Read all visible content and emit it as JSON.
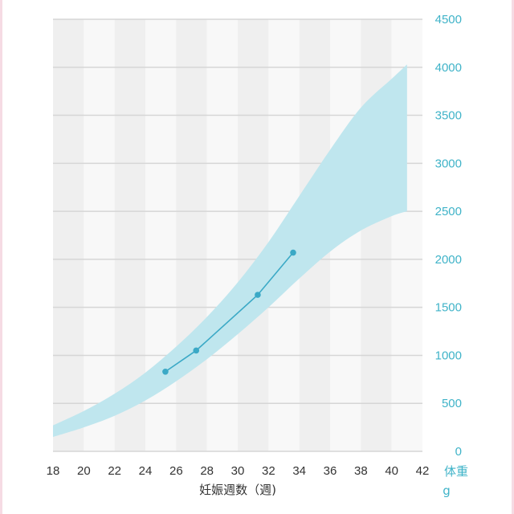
{
  "chart_data": {
    "type": "line",
    "xlabel": "妊娠週数（週)",
    "ylabel": "体重",
    "yunit": "g",
    "xlim": [
      18,
      42
    ],
    "ylim": [
      0,
      4500
    ],
    "xticks": [
      18,
      20,
      22,
      24,
      26,
      28,
      30,
      32,
      34,
      36,
      38,
      40,
      42
    ],
    "yticks": [
      0,
      500,
      1000,
      1500,
      2000,
      2500,
      3000,
      3500,
      4000,
      4500
    ],
    "y_axis_position": "right",
    "grid": "horizontal",
    "band": {
      "x": [
        18,
        20,
        22,
        24,
        26,
        28,
        30,
        32,
        34,
        36,
        38,
        40,
        41
      ],
      "lower": [
        150,
        250,
        370,
        530,
        730,
        960,
        1220,
        1500,
        1800,
        2080,
        2300,
        2450,
        2500
      ],
      "upper": [
        270,
        420,
        600,
        820,
        1090,
        1400,
        1760,
        2180,
        2660,
        3140,
        3580,
        3880,
        4030
      ],
      "color": "#bfe6ee"
    },
    "series": [
      {
        "x": [
          25.3,
          27.3,
          31.3,
          33.6
        ],
        "y": [
          830,
          1050,
          1630,
          2070
        ],
        "color": "#3ba9c6"
      }
    ],
    "colors": {
      "plot_background_a": "#efefef",
      "plot_background_b": "#f8f8f8",
      "gridline": "#d6d6d6",
      "y_tick_color": "#3fb3c8",
      "x_tick_color": "#333333",
      "edge": "#f6dbe4"
    }
  }
}
